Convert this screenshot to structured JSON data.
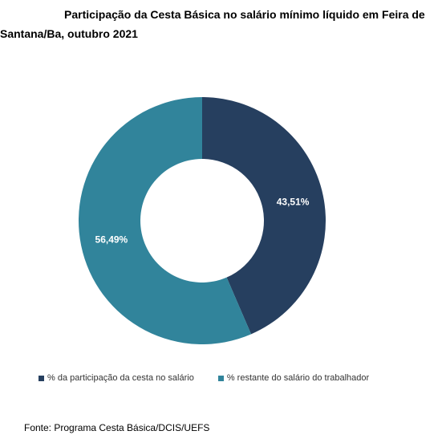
{
  "chart_data": {
    "type": "pie",
    "title": "Participação da Cesta Básica no salário mínimo líquido em Feira de Santana/Ba, outubro 2021",
    "categories": [
      "% da participação da cesta no salário",
      "% restante do salário do trabalhador"
    ],
    "values": [
      43.51,
      56.49
    ],
    "value_labels": [
      "43,51%",
      "56,49%"
    ],
    "colors": [
      "#263f5f",
      "#31849b"
    ],
    "donut": true,
    "legend_position": "bottom"
  },
  "source": "Fonte: Programa Cesta Básica/DCIS/UEFS"
}
